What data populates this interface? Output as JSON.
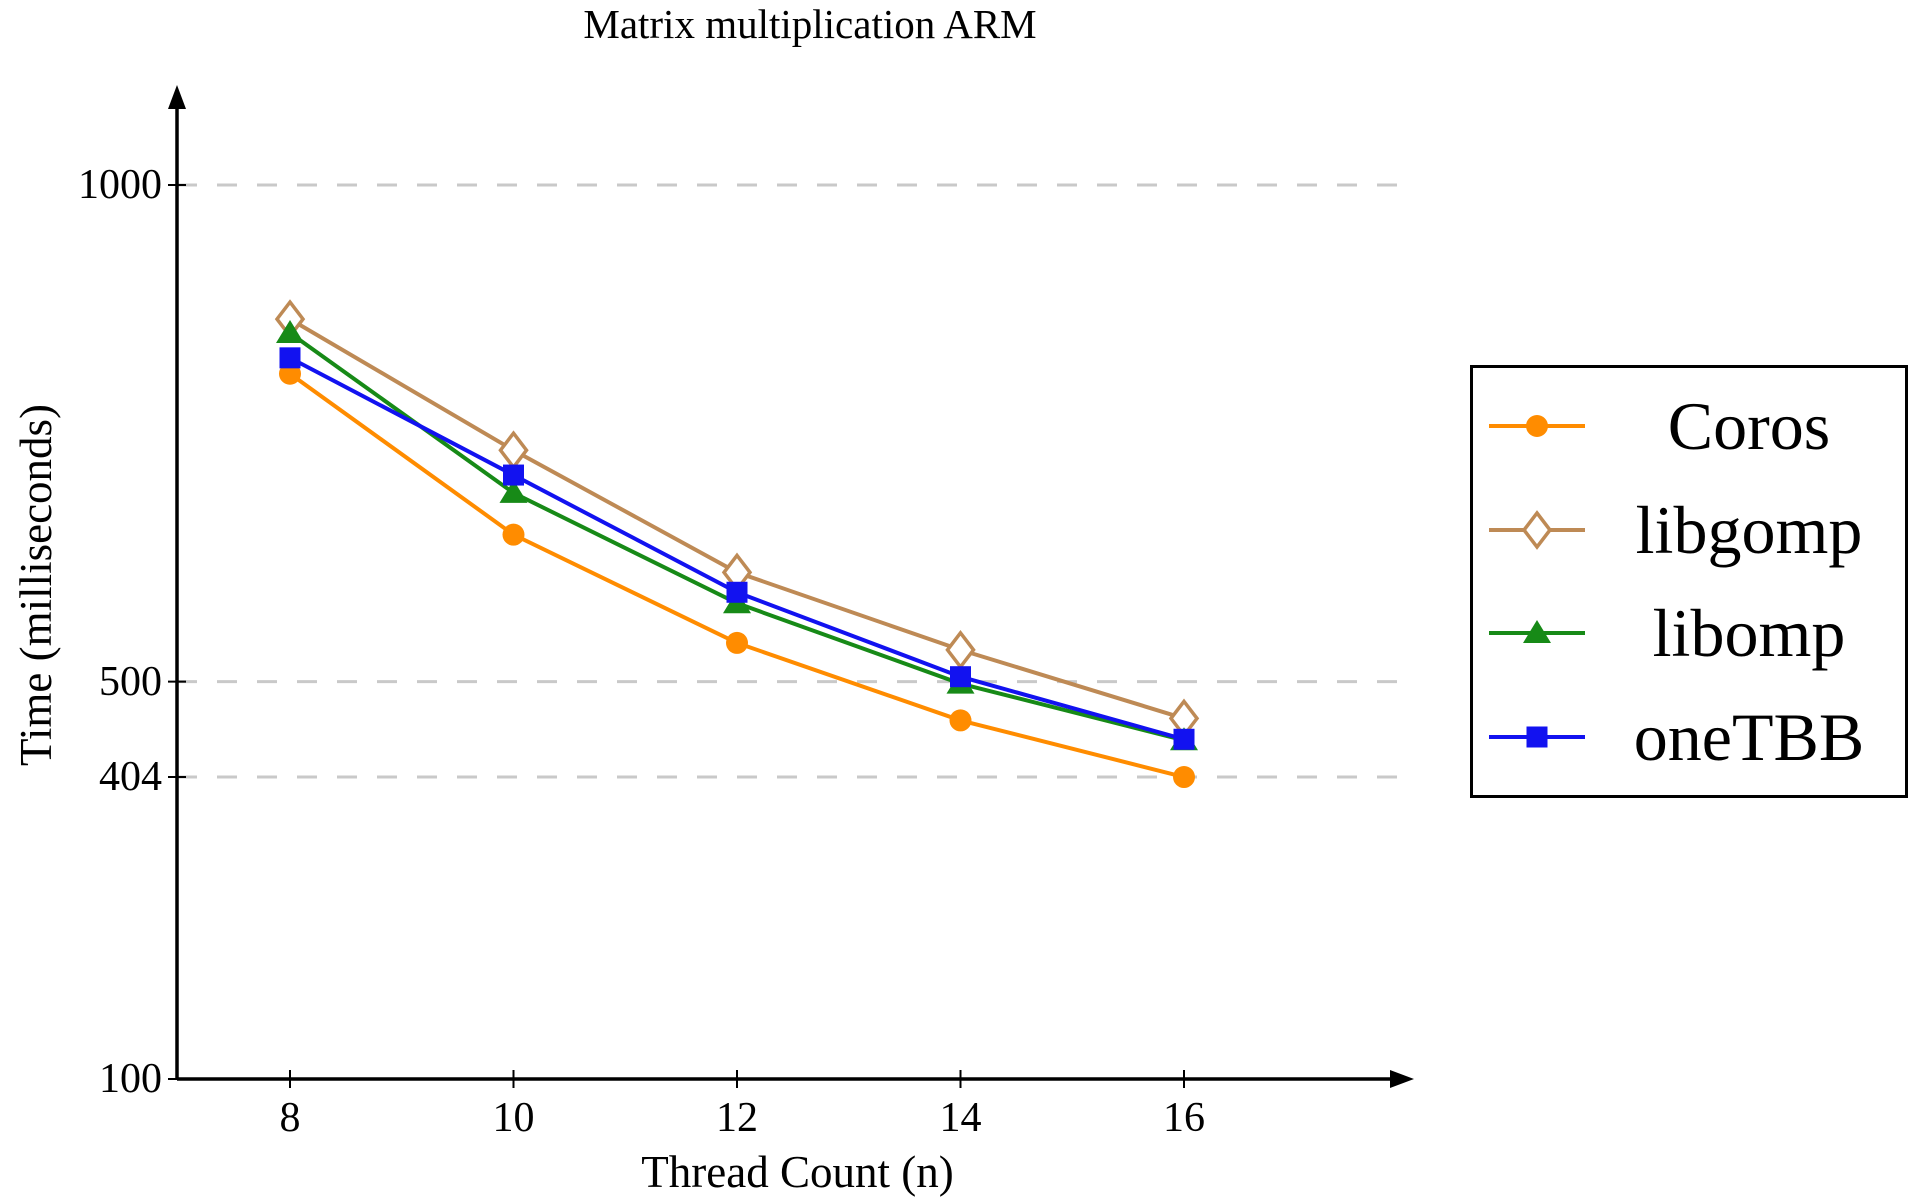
{
  "chart_data": {
    "type": "line",
    "title": "Matrix multiplication ARM",
    "xlabel": "Thread Count (n)",
    "ylabel": "Time (milliseconds)",
    "categories": [
      8,
      10,
      12,
      14,
      16
    ],
    "x_ticks": [
      "8",
      "10",
      "12",
      "14",
      "16"
    ],
    "y_ticks": [
      100,
      404,
      500,
      1000
    ],
    "gridline_values": [
      404,
      500,
      1000
    ],
    "x_range": [
      7,
      18
    ],
    "y_range": [
      100,
      1100
    ],
    "grid_style": "dashed",
    "grid_color": "#C9C9C9",
    "axis_color": "#000000",
    "legend_position": "right",
    "series": [
      {
        "name": "Coros",
        "marker": "circle",
        "color": "#FF8C00",
        "values": [
          810,
          648,
          539,
          461,
          404
        ]
      },
      {
        "name": "libgomp",
        "marker": "diamond-open",
        "color": "#BE8A55",
        "values": [
          865,
          733,
          610,
          532,
          463
        ]
      },
      {
        "name": "libomp",
        "marker": "triangle",
        "color": "#178A17",
        "values": [
          851,
          690,
          579,
          498,
          441
        ]
      },
      {
        "name": "oneTBB",
        "marker": "square",
        "color": "#1212F0",
        "values": [
          826,
          708,
          590,
          505,
          442
        ]
      }
    ]
  }
}
